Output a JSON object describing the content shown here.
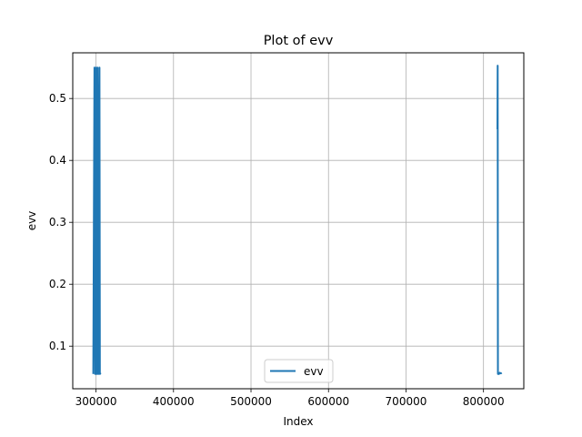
{
  "chart_data": {
    "type": "line",
    "title": "Plot of evv",
    "xlabel": "Index",
    "ylabel": "evv",
    "xlim": [
      270000,
      852000
    ],
    "ylim": [
      0.0312,
      0.5738
    ],
    "xticks": [
      300000,
      400000,
      500000,
      600000,
      700000,
      800000
    ],
    "xtick_labels": [
      "300000",
      "400000",
      "500000",
      "600000",
      "700000",
      "800000"
    ],
    "yticks": [
      0.1,
      0.2,
      0.3,
      0.4,
      0.5
    ],
    "ytick_labels": [
      "0.1",
      "0.2",
      "0.3",
      "0.4",
      "0.5"
    ],
    "grid": true,
    "legend_position": "lower center",
    "series": [
      {
        "name": "evv",
        "color": "#1f77b4",
        "segments": [
          {
            "x": [
              296500,
              298000,
              299000,
              300000,
              301000,
              302000,
              303000,
              304500,
              305000,
              306000
            ],
            "y": [
              0.055,
              0.55,
              0.055,
              0.55,
              0.055,
              0.55,
              0.055,
              0.55,
              0.055,
              0.057
            ]
          },
          {
            "x": [
              818000,
              818300,
              818600,
              819000,
              820000,
              821000,
              822500,
              823500
            ],
            "y": [
              0.45,
              0.553,
              0.055,
              0.057,
              0.055,
              0.057,
              0.056,
              0.057
            ]
          }
        ]
      }
    ]
  }
}
